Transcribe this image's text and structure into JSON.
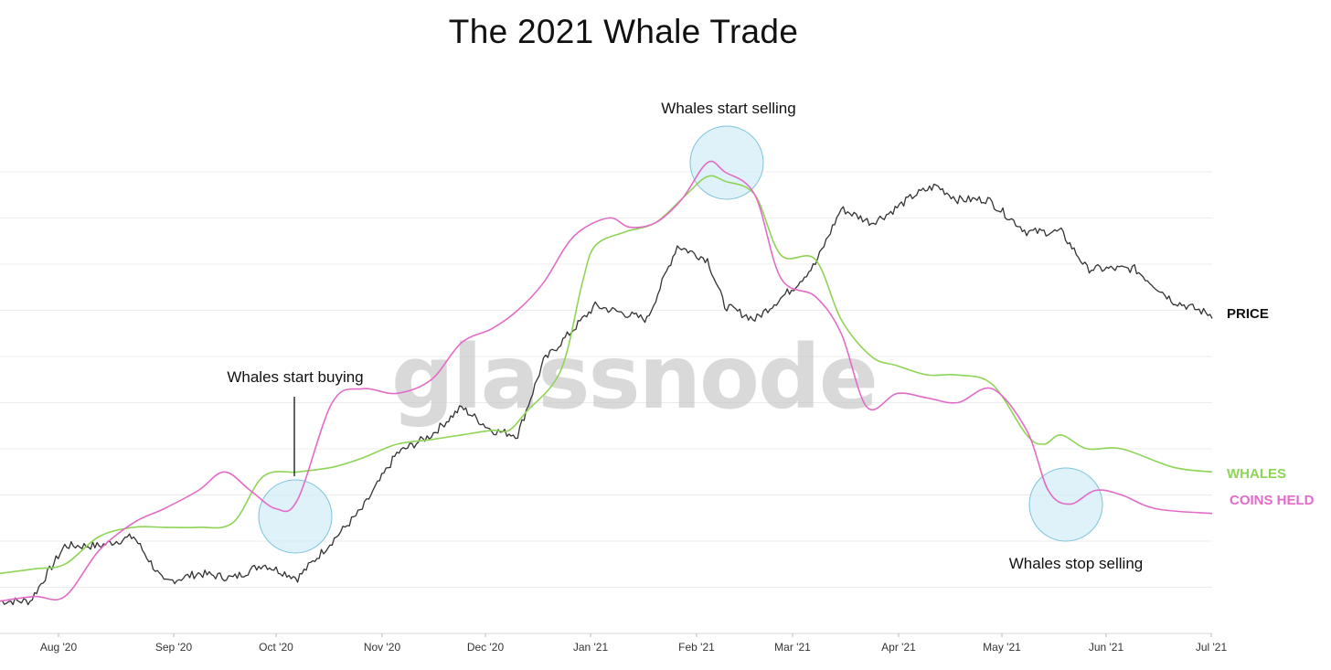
{
  "title": "The 2021 Whale Trade",
  "watermark": "glassnode",
  "colors": {
    "price": "#333333",
    "whales": "#8ed456",
    "coins_held": "#e26bc8",
    "circle_fill": "#d4ecf7",
    "circle_stroke": "#7cc4dd",
    "grid": "#ececec"
  },
  "chart_data": {
    "type": "line",
    "x_tick_labels": [
      "Aug '20",
      "Sep '20",
      "Oct '20",
      "Nov '20",
      "Dec '20",
      "Jan '21",
      "Feb '21",
      "Mar '21",
      "Apr '21",
      "May '21",
      "Jun '21",
      "Jul '21"
    ],
    "ylim": [
      0,
      100
    ],
    "grid": "horizontal",
    "series": [
      {
        "name": "PRICE",
        "values": [
          [
            0,
            7
          ],
          [
            7,
            7
          ],
          [
            15,
            19
          ],
          [
            23,
            19
          ],
          [
            31,
            21
          ],
          [
            38,
            11
          ],
          [
            46,
            13
          ],
          [
            54,
            12
          ],
          [
            61,
            15
          ],
          [
            69,
            12
          ],
          [
            77,
            20
          ],
          [
            84,
            27
          ],
          [
            92,
            39
          ],
          [
            100,
            43
          ],
          [
            107,
            49
          ],
          [
            114,
            44
          ],
          [
            120,
            43
          ],
          [
            126,
            59
          ],
          [
            133,
            66
          ],
          [
            138,
            71
          ],
          [
            142,
            70
          ],
          [
            150,
            68
          ],
          [
            157,
            84
          ],
          [
            164,
            81
          ],
          [
            168,
            71
          ],
          [
            175,
            68
          ],
          [
            184,
            75
          ],
          [
            189,
            80
          ],
          [
            195,
            92
          ],
          [
            202,
            89
          ],
          [
            206,
            91
          ],
          [
            212,
            95
          ],
          [
            217,
            97
          ],
          [
            222,
            94
          ],
          [
            229,
            94
          ],
          [
            238,
            87
          ],
          [
            246,
            87
          ],
          [
            252,
            79
          ],
          [
            263,
            79
          ],
          [
            272,
            72
          ],
          [
            281,
            69
          ]
        ]
      },
      {
        "name": "WHALES",
        "values": [
          [
            0,
            13
          ],
          [
            8,
            14
          ],
          [
            15,
            15
          ],
          [
            23,
            21
          ],
          [
            31,
            23
          ],
          [
            38,
            23
          ],
          [
            46,
            23
          ],
          [
            54,
            24
          ],
          [
            61,
            34
          ],
          [
            69,
            35
          ],
          [
            77,
            36
          ],
          [
            84,
            38
          ],
          [
            92,
            41
          ],
          [
            100,
            42
          ],
          [
            107,
            43
          ],
          [
            114,
            44
          ],
          [
            118,
            44
          ],
          [
            122,
            48
          ],
          [
            130,
            57
          ],
          [
            135,
            76
          ],
          [
            138,
            84
          ],
          [
            145,
            87
          ],
          [
            152,
            89
          ],
          [
            159,
            95
          ],
          [
            164,
            99
          ],
          [
            168,
            98
          ],
          [
            175,
            95
          ],
          [
            181,
            82
          ],
          [
            189,
            81
          ],
          [
            195,
            68
          ],
          [
            202,
            60
          ],
          [
            208,
            58
          ],
          [
            215,
            56
          ],
          [
            222,
            56
          ],
          [
            230,
            54
          ],
          [
            238,
            43
          ],
          [
            242,
            41
          ],
          [
            246,
            43
          ],
          [
            252,
            40
          ],
          [
            260,
            40
          ],
          [
            272,
            36
          ],
          [
            281,
            35
          ]
        ]
      },
      {
        "name": "COINS HELD",
        "values": [
          [
            0,
            7
          ],
          [
            8,
            8
          ],
          [
            15,
            8
          ],
          [
            23,
            18
          ],
          [
            31,
            24
          ],
          [
            38,
            27
          ],
          [
            46,
            31
          ],
          [
            52,
            35
          ],
          [
            58,
            31
          ],
          [
            64,
            27
          ],
          [
            69,
            29
          ],
          [
            77,
            50
          ],
          [
            84,
            53
          ],
          [
            92,
            52
          ],
          [
            100,
            55
          ],
          [
            107,
            63
          ],
          [
            114,
            66
          ],
          [
            120,
            70
          ],
          [
            126,
            76
          ],
          [
            133,
            86
          ],
          [
            141,
            90
          ],
          [
            146,
            88
          ],
          [
            152,
            89
          ],
          [
            158,
            94
          ],
          [
            164,
            102
          ],
          [
            168,
            100
          ],
          [
            175,
            95
          ],
          [
            181,
            77
          ],
          [
            189,
            73
          ],
          [
            195,
            65
          ],
          [
            201,
            49
          ],
          [
            208,
            52
          ],
          [
            215,
            51
          ],
          [
            222,
            50
          ],
          [
            230,
            53
          ],
          [
            238,
            44
          ],
          [
            243,
            31
          ],
          [
            248,
            28
          ],
          [
            254,
            31
          ],
          [
            260,
            30
          ],
          [
            268,
            27
          ],
          [
            281,
            26
          ]
        ]
      }
    ],
    "annotations": [
      "Whales start buying",
      "Whales start selling",
      "Whales stop selling"
    ]
  },
  "end_labels": {
    "price": "PRICE",
    "whales": "WHALES",
    "coins_held": "COINS HELD"
  }
}
